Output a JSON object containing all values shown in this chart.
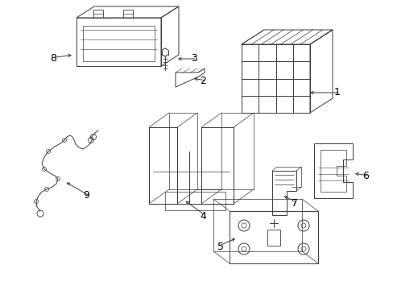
{
  "background_color": "#ffffff",
  "line_color": "#3a3a3a",
  "label_color": "#000000",
  "figsize": [
    4.89,
    3.6
  ],
  "dpi": 100
}
